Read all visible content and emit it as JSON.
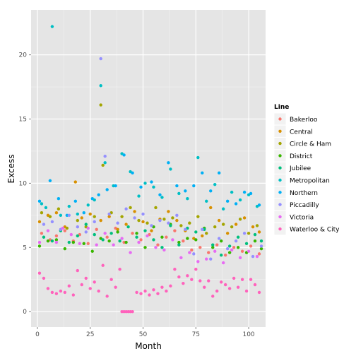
{
  "chart_data": {
    "type": "scatter",
    "xlabel": "Month",
    "ylabel": "Excess",
    "xlim": [
      -3,
      108
    ],
    "ylim": [
      -1.2,
      23.5
    ],
    "x_ticks": [
      "0",
      "25",
      "50",
      "75",
      "100"
    ],
    "y_ticks": [
      "0",
      "5",
      "10",
      "15",
      "20"
    ],
    "grid": true,
    "legend_position": "right",
    "legend_title": "Line",
    "series": [
      {
        "name": "Bakerloo",
        "color": "#F8766D",
        "points": [
          [
            2,
            6.1
          ],
          [
            6,
            5.6
          ],
          [
            9,
            5.9
          ],
          [
            13,
            6.3
          ],
          [
            17,
            5.5
          ],
          [
            20,
            6.0
          ],
          [
            24,
            5.3
          ],
          [
            28,
            6.4
          ],
          [
            33,
            5.8
          ],
          [
            37,
            6.5
          ],
          [
            41,
            5.4
          ],
          [
            45,
            6.1
          ],
          [
            49,
            5.6
          ],
          [
            53,
            6.0
          ],
          [
            57,
            5.2
          ],
          [
            61,
            5.8
          ],
          [
            65,
            6.3
          ],
          [
            69,
            5.5
          ],
          [
            73,
            4.8
          ],
          [
            77,
            5.0
          ],
          [
            81,
            4.6
          ],
          [
            85,
            5.2
          ],
          [
            89,
            4.4
          ],
          [
            93,
            5.0
          ],
          [
            97,
            4.7
          ],
          [
            101,
            5.1
          ],
          [
            105,
            4.5
          ]
        ]
      },
      {
        "name": "Central",
        "color": "#D89000",
        "points": [
          [
            1,
            7.0
          ],
          [
            5,
            7.5
          ],
          [
            9,
            7.7
          ],
          [
            13,
            6.6
          ],
          [
            18,
            10.1
          ],
          [
            21,
            7.3
          ],
          [
            25,
            7.6
          ],
          [
            30,
            7.1
          ],
          [
            34,
            7.4
          ],
          [
            38,
            6.4
          ],
          [
            42,
            6.8
          ],
          [
            46,
            7.8
          ],
          [
            50,
            7.0
          ],
          [
            54,
            6.3
          ],
          [
            58,
            7.2
          ],
          [
            62,
            7.8
          ],
          [
            66,
            7.1
          ],
          [
            70,
            6.3
          ],
          [
            74,
            5.7
          ],
          [
            78,
            5.9
          ],
          [
            82,
            8.1
          ],
          [
            86,
            7.1
          ],
          [
            90,
            6.1
          ],
          [
            94,
            6.8
          ],
          [
            98,
            7.3
          ],
          [
            102,
            6.6
          ],
          [
            105,
            6.2
          ]
        ]
      },
      {
        "name": "Circle & Ham",
        "color": "#A3A500",
        "points": [
          [
            2,
            7.7
          ],
          [
            6,
            7.4
          ],
          [
            10,
            8.0
          ],
          [
            14,
            6.5
          ],
          [
            19,
            7.1
          ],
          [
            23,
            6.6
          ],
          [
            27,
            7.4
          ],
          [
            30,
            16.1
          ],
          [
            31,
            11.4
          ],
          [
            35,
            7.7
          ],
          [
            40,
            7.4
          ],
          [
            44,
            8.1
          ],
          [
            48,
            7.1
          ],
          [
            52,
            6.9
          ],
          [
            56,
            8.1
          ],
          [
            60,
            7.2
          ],
          [
            64,
            7.3
          ],
          [
            68,
            6.7
          ],
          [
            72,
            6.9
          ],
          [
            76,
            7.4
          ],
          [
            80,
            6.1
          ],
          [
            84,
            6.6
          ],
          [
            88,
            6.8
          ],
          [
            92,
            6.6
          ],
          [
            96,
            7.2
          ],
          [
            100,
            6.1
          ],
          [
            104,
            6.7
          ]
        ]
      },
      {
        "name": "District",
        "color": "#39B600",
        "points": [
          [
            1,
            5.1
          ],
          [
            5,
            5.5
          ],
          [
            9,
            5.6
          ],
          [
            13,
            4.9
          ],
          [
            17,
            5.4
          ],
          [
            22,
            5.3
          ],
          [
            26,
            4.7
          ],
          [
            30,
            5.7
          ],
          [
            34,
            5.5
          ],
          [
            38,
            6.2
          ],
          [
            42,
            5.4
          ],
          [
            47,
            6.1
          ],
          [
            51,
            5.0
          ],
          [
            55,
            6.6
          ],
          [
            59,
            5.8
          ],
          [
            63,
            6.8
          ],
          [
            67,
            5.4
          ],
          [
            71,
            5.7
          ],
          [
            75,
            5.6
          ],
          [
            79,
            6.5
          ],
          [
            83,
            5.0
          ],
          [
            87,
            5.5
          ],
          [
            91,
            4.6
          ],
          [
            95,
            5.0
          ],
          [
            99,
            4.6
          ],
          [
            103,
            5.5
          ],
          [
            106,
            4.9
          ]
        ]
      },
      {
        "name": "Jubilee",
        "color": "#00BF7D",
        "points": [
          [
            3,
            5.8
          ],
          [
            7,
            5.5
          ],
          [
            11,
            6.3
          ],
          [
            15,
            5.4
          ],
          [
            19,
            5.9
          ],
          [
            23,
            6.8
          ],
          [
            27,
            6.0
          ],
          [
            31,
            5.6
          ],
          [
            35,
            6.1
          ],
          [
            39,
            5.5
          ],
          [
            43,
            6.6
          ],
          [
            47,
            5.8
          ],
          [
            51,
            6.3
          ],
          [
            55,
            5.6
          ],
          [
            59,
            5.0
          ],
          [
            63,
            6.7
          ],
          [
            67,
            5.2
          ],
          [
            71,
            6.5
          ],
          [
            75,
            6.2
          ],
          [
            79,
            6.4
          ],
          [
            83,
            5.2
          ],
          [
            87,
            4.4
          ],
          [
            91,
            5.1
          ],
          [
            95,
            5.8
          ],
          [
            99,
            5.3
          ],
          [
            103,
            6.0
          ],
          [
            106,
            5.5
          ]
        ]
      },
      {
        "name": "Metropolitan",
        "color": "#00BFC4",
        "points": [
          [
            2,
            8.4
          ],
          [
            4,
            8.1
          ],
          [
            7,
            22.2
          ],
          [
            11,
            7.5
          ],
          [
            15,
            8.2
          ],
          [
            19,
            7.6
          ],
          [
            24,
            8.3
          ],
          [
            27,
            8.7
          ],
          [
            30,
            17.6
          ],
          [
            32,
            11.6
          ],
          [
            36,
            9.8
          ],
          [
            40,
            12.3
          ],
          [
            44,
            10.9
          ],
          [
            48,
            9.0
          ],
          [
            51,
            10.0
          ],
          [
            55,
            9.7
          ],
          [
            59,
            8.9
          ],
          [
            63,
            11.1
          ],
          [
            67,
            9.2
          ],
          [
            71,
            8.8
          ],
          [
            76,
            12.0
          ],
          [
            80,
            8.6
          ],
          [
            84,
            9.9
          ],
          [
            88,
            8.0
          ],
          [
            92,
            9.3
          ],
          [
            96,
            8.7
          ],
          [
            100,
            9.1
          ],
          [
            104,
            8.2
          ]
        ]
      },
      {
        "name": "Northern",
        "color": "#00B0F6",
        "points": [
          [
            1,
            8.6
          ],
          [
            6,
            10.2
          ],
          [
            10,
            8.8
          ],
          [
            14,
            7.5
          ],
          [
            18,
            8.6
          ],
          [
            22,
            7.7
          ],
          [
            26,
            8.8
          ],
          [
            29,
            9.1
          ],
          [
            33,
            9.5
          ],
          [
            37,
            9.8
          ],
          [
            41,
            12.2
          ],
          [
            45,
            10.8
          ],
          [
            49,
            9.7
          ],
          [
            54,
            10.1
          ],
          [
            58,
            9.1
          ],
          [
            62,
            11.6
          ],
          [
            66,
            9.8
          ],
          [
            70,
            9.4
          ],
          [
            74,
            9.8
          ],
          [
            78,
            10.8
          ],
          [
            82,
            9.4
          ],
          [
            86,
            10.8
          ],
          [
            90,
            8.6
          ],
          [
            94,
            8.4
          ],
          [
            98,
            9.3
          ],
          [
            101,
            9.2
          ],
          [
            105,
            8.3
          ]
        ]
      },
      {
        "name": "Piccadilly",
        "color": "#9590FF",
        "points": [
          [
            3,
            6.8
          ],
          [
            7,
            7.0
          ],
          [
            11,
            6.4
          ],
          [
            15,
            7.5
          ],
          [
            19,
            6.6
          ],
          [
            23,
            6.2
          ],
          [
            27,
            7.0
          ],
          [
            30,
            19.7
          ],
          [
            32,
            12.1
          ],
          [
            34,
            7.6
          ],
          [
            38,
            6.9
          ],
          [
            42,
            8.0
          ],
          [
            46,
            7.3
          ],
          [
            50,
            7.6
          ],
          [
            54,
            6.7
          ],
          [
            58,
            7.1
          ],
          [
            62,
            6.9
          ],
          [
            66,
            7.5
          ],
          [
            70,
            6.4
          ],
          [
            74,
            4.5
          ],
          [
            78,
            6.4
          ],
          [
            82,
            4.1
          ],
          [
            86,
            5.7
          ],
          [
            90,
            4.9
          ],
          [
            94,
            5.5
          ],
          [
            98,
            6.1
          ],
          [
            102,
            4.3
          ],
          [
            106,
            5.1
          ]
        ]
      },
      {
        "name": "Victoria",
        "color": "#E76BF3",
        "points": [
          [
            1,
            5.4
          ],
          [
            5,
            6.3
          ],
          [
            9,
            5.4
          ],
          [
            12,
            6.5
          ],
          [
            16,
            6.0
          ],
          [
            20,
            5.3
          ],
          [
            24,
            6.5
          ],
          [
            28,
            5.2
          ],
          [
            32,
            6.1
          ],
          [
            36,
            5.2
          ],
          [
            40,
            5.7
          ],
          [
            44,
            4.6
          ],
          [
            48,
            5.4
          ],
          [
            52,
            5.9
          ],
          [
            56,
            5.0
          ],
          [
            60,
            4.8
          ],
          [
            64,
            5.6
          ],
          [
            68,
            4.2
          ],
          [
            72,
            4.6
          ],
          [
            76,
            3.9
          ],
          [
            80,
            4.1
          ],
          [
            84,
            4.7
          ],
          [
            88,
            3.8
          ],
          [
            92,
            4.8
          ],
          [
            96,
            4.2
          ],
          [
            100,
            4.7
          ],
          [
            104,
            4.3
          ]
        ]
      },
      {
        "name": "Waterloo & City",
        "color": "#FF62BC",
        "points": [
          [
            1,
            3.0
          ],
          [
            3,
            2.6
          ],
          [
            5,
            1.8
          ],
          [
            7,
            1.5
          ],
          [
            9,
            1.4
          ],
          [
            11,
            1.6
          ],
          [
            13,
            1.5
          ],
          [
            15,
            2.0
          ],
          [
            17,
            1.3
          ],
          [
            19,
            3.2
          ],
          [
            21,
            2.1
          ],
          [
            23,
            2.6
          ],
          [
            25,
            1.8
          ],
          [
            27,
            2.3
          ],
          [
            29,
            1.6
          ],
          [
            31,
            3.6
          ],
          [
            33,
            1.2
          ],
          [
            35,
            2.5
          ],
          [
            37,
            1.9
          ],
          [
            39,
            3.3
          ],
          [
            40,
            0.0
          ],
          [
            41,
            0.0
          ],
          [
            42,
            0.0
          ],
          [
            43,
            0.0
          ],
          [
            44,
            0.0
          ],
          [
            45,
            0.0
          ],
          [
            47,
            1.5
          ],
          [
            49,
            1.4
          ],
          [
            51,
            1.6
          ],
          [
            53,
            1.3
          ],
          [
            55,
            1.7
          ],
          [
            57,
            1.4
          ],
          [
            59,
            1.9
          ],
          [
            61,
            1.6
          ],
          [
            63,
            2.0
          ],
          [
            65,
            3.3
          ],
          [
            67,
            2.7
          ],
          [
            69,
            2.2
          ],
          [
            71,
            2.8
          ],
          [
            73,
            2.5
          ],
          [
            75,
            3.3
          ],
          [
            77,
            2.4
          ],
          [
            79,
            1.9
          ],
          [
            81,
            2.4
          ],
          [
            83,
            1.2
          ],
          [
            85,
            1.6
          ],
          [
            87,
            2.3
          ],
          [
            89,
            2.1
          ],
          [
            91,
            1.8
          ],
          [
            93,
            2.6
          ],
          [
            95,
            1.9
          ],
          [
            97,
            2.5
          ],
          [
            99,
            1.6
          ],
          [
            101,
            2.5
          ],
          [
            103,
            2.1
          ],
          [
            105,
            1.5
          ]
        ]
      }
    ]
  }
}
